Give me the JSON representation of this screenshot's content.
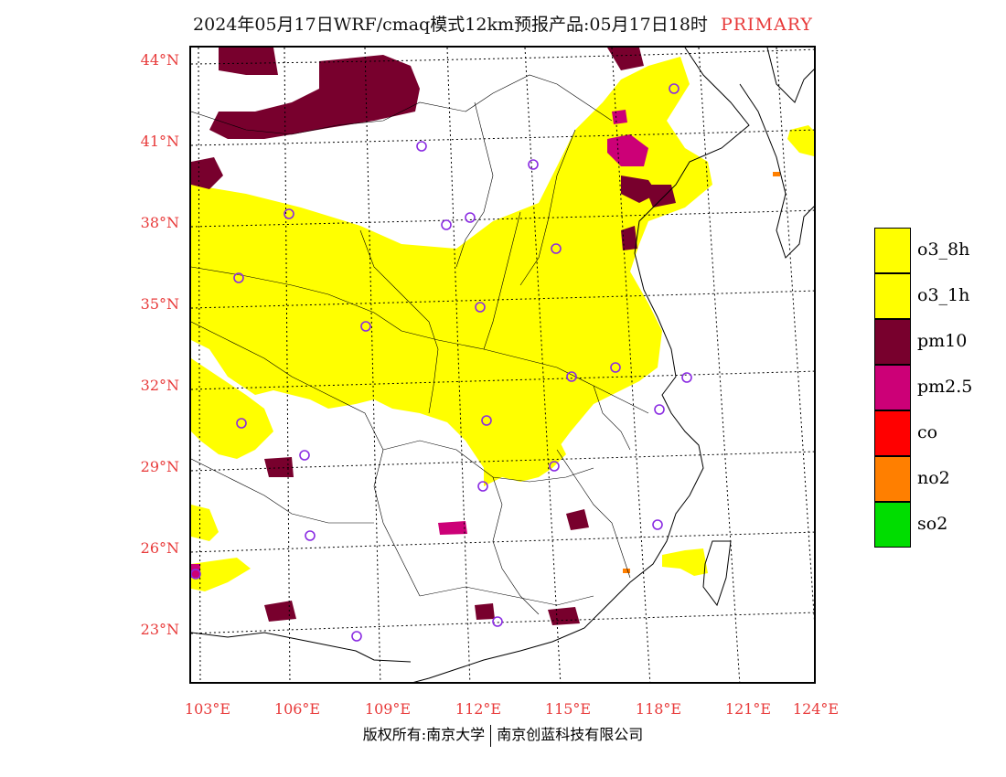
{
  "title": {
    "main": "2024年05月17日WRF/cmaq模式12km预报产品:05月17日18时",
    "tag": "PRIMARY"
  },
  "map": {
    "lat_labels": [
      "44°N",
      "41°N",
      "38°N",
      "35°N",
      "32°N",
      "29°N",
      "26°N",
      "23°N"
    ],
    "lon_labels": [
      "103°E",
      "106°E",
      "109°E",
      "112°E",
      "115°E",
      "118°E",
      "121°E",
      "124°E"
    ]
  },
  "legend": [
    {
      "label": "o3_8h",
      "color": "#ffff00"
    },
    {
      "label": "o3_1h",
      "color": "#ffff00"
    },
    {
      "label": "pm10",
      "color": "#78002d"
    },
    {
      "label": "pm2.5",
      "color": "#cc0077"
    },
    {
      "label": "co",
      "color": "#ff0000"
    },
    {
      "label": "no2",
      "color": "#ff7f00"
    },
    {
      "label": "so2",
      "color": "#00dd00"
    }
  ],
  "footer": {
    "left": "版权所有:南京大学",
    "right": "南京创蓝科技有限公司"
  }
}
